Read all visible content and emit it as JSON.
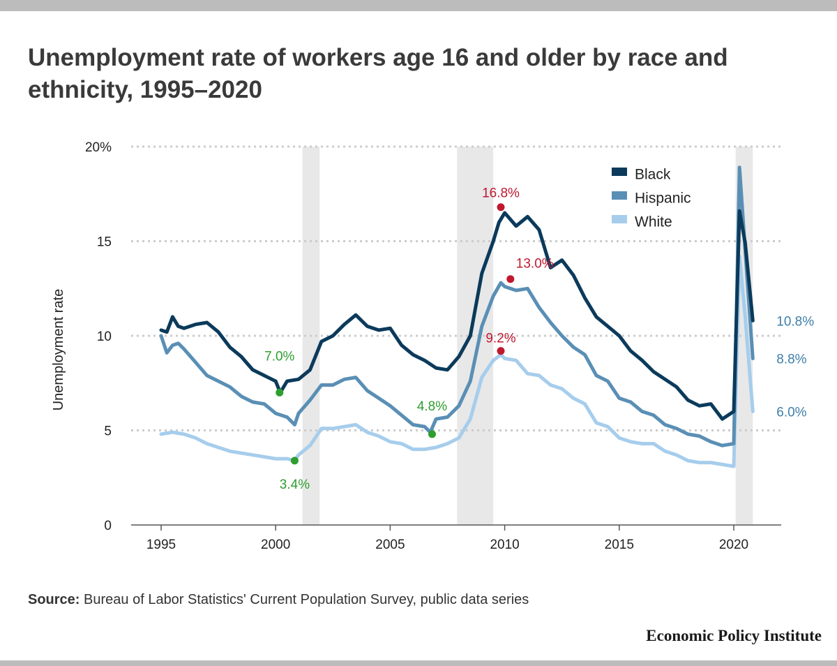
{
  "title": "Unemployment rate of workers age 16 and older by race and ethnicity, 1995–2020",
  "source_label": "Source:",
  "source_text": "Bureau of Labor Statistics' Current Population Survey, public data series",
  "brand": "Economic Policy Institute",
  "colors": {
    "Black": "#0b3a5b",
    "Hispanic": "#5a8fb5",
    "White": "#a6cdec",
    "max_marker": "#c0182f",
    "min_marker": "#2e9e2e",
    "end_label": "#3f7fa8",
    "recession": "#e8e8e8",
    "grid": "#cccccc"
  },
  "chart_data": {
    "type": "line",
    "xlabel": "",
    "ylabel": "Unemployment rate",
    "xlim": [
      1995,
      2020.83
    ],
    "ylim": [
      0,
      20
    ],
    "x_ticks": [
      1995,
      2000,
      2005,
      2010,
      2015,
      2020
    ],
    "y_ticks": [
      {
        "value": 0,
        "label": "0"
      },
      {
        "value": 5,
        "label": "5"
      },
      {
        "value": 10,
        "label": "10"
      },
      {
        "value": 15,
        "label": "15"
      },
      {
        "value": 20,
        "label": "20%"
      }
    ],
    "grid": "horizontal-dotted",
    "legend_position": "top-right",
    "recessions": [
      [
        2001.17,
        2001.92
      ],
      [
        2007.92,
        2009.5
      ],
      [
        2020.08,
        2020.83
      ]
    ],
    "series": [
      {
        "name": "Black",
        "points": [
          [
            1995,
            10.3
          ],
          [
            1995.25,
            10.2
          ],
          [
            1995.5,
            11.0
          ],
          [
            1995.75,
            10.5
          ],
          [
            1996,
            10.4
          ],
          [
            1996.5,
            10.6
          ],
          [
            1997,
            10.7
          ],
          [
            1997.5,
            10.2
          ],
          [
            1998,
            9.4
          ],
          [
            1998.5,
            8.9
          ],
          [
            1999,
            8.2
          ],
          [
            1999.5,
            7.9
          ],
          [
            2000,
            7.6
          ],
          [
            2000.2,
            7.0
          ],
          [
            2000.5,
            7.6
          ],
          [
            2001,
            7.7
          ],
          [
            2001.5,
            8.2
          ],
          [
            2002,
            9.7
          ],
          [
            2002.5,
            10.0
          ],
          [
            2003,
            10.6
          ],
          [
            2003.5,
            11.1
          ],
          [
            2004,
            10.5
          ],
          [
            2004.5,
            10.3
          ],
          [
            2005,
            10.4
          ],
          [
            2005.5,
            9.5
          ],
          [
            2006,
            9.0
          ],
          [
            2006.5,
            8.7
          ],
          [
            2007,
            8.3
          ],
          [
            2007.5,
            8.2
          ],
          [
            2008,
            8.9
          ],
          [
            2008.5,
            10.0
          ],
          [
            2009,
            13.3
          ],
          [
            2009.5,
            15.0
          ],
          [
            2009.75,
            16.0
          ],
          [
            2010,
            16.5
          ],
          [
            2010.5,
            15.8
          ],
          [
            2011,
            16.3
          ],
          [
            2011.5,
            15.6
          ],
          [
            2012,
            13.6
          ],
          [
            2012.5,
            14.0
          ],
          [
            2013,
            13.2
          ],
          [
            2013.5,
            12.0
          ],
          [
            2014,
            11.0
          ],
          [
            2014.5,
            10.5
          ],
          [
            2015,
            10.0
          ],
          [
            2015.5,
            9.2
          ],
          [
            2016,
            8.7
          ],
          [
            2016.5,
            8.1
          ],
          [
            2017,
            7.7
          ],
          [
            2017.5,
            7.3
          ],
          [
            2018,
            6.6
          ],
          [
            2018.5,
            6.3
          ],
          [
            2019,
            6.4
          ],
          [
            2019.5,
            5.6
          ],
          [
            2020,
            6.0
          ],
          [
            2020.25,
            16.6
          ],
          [
            2020.5,
            14.9
          ],
          [
            2020.83,
            10.8
          ]
        ]
      },
      {
        "name": "Hispanic",
        "points": [
          [
            1995,
            10.0
          ],
          [
            1995.25,
            9.1
          ],
          [
            1995.5,
            9.5
          ],
          [
            1995.75,
            9.6
          ],
          [
            1996,
            9.3
          ],
          [
            1996.5,
            8.6
          ],
          [
            1997,
            7.9
          ],
          [
            1997.5,
            7.6
          ],
          [
            1998,
            7.3
          ],
          [
            1998.5,
            6.8
          ],
          [
            1999,
            6.5
          ],
          [
            1999.5,
            6.4
          ],
          [
            2000,
            5.9
          ],
          [
            2000.5,
            5.7
          ],
          [
            2000.83,
            5.3
          ],
          [
            2001,
            5.9
          ],
          [
            2001.5,
            6.6
          ],
          [
            2002,
            7.4
          ],
          [
            2002.5,
            7.4
          ],
          [
            2003,
            7.7
          ],
          [
            2003.5,
            7.8
          ],
          [
            2004,
            7.1
          ],
          [
            2004.5,
            6.7
          ],
          [
            2005,
            6.3
          ],
          [
            2005.5,
            5.8
          ],
          [
            2006,
            5.3
          ],
          [
            2006.5,
            5.2
          ],
          [
            2006.75,
            4.9
          ],
          [
            2007,
            5.6
          ],
          [
            2007.5,
            5.7
          ],
          [
            2008,
            6.3
          ],
          [
            2008.5,
            7.6
          ],
          [
            2009,
            10.5
          ],
          [
            2009.5,
            12.1
          ],
          [
            2009.83,
            12.8
          ],
          [
            2010,
            12.6
          ],
          [
            2010.5,
            12.4
          ],
          [
            2011,
            12.5
          ],
          [
            2011.5,
            11.5
          ],
          [
            2012,
            10.7
          ],
          [
            2012.5,
            10.0
          ],
          [
            2013,
            9.4
          ],
          [
            2013.5,
            9.0
          ],
          [
            2014,
            7.9
          ],
          [
            2014.5,
            7.6
          ],
          [
            2015,
            6.7
          ],
          [
            2015.5,
            6.5
          ],
          [
            2016,
            6.0
          ],
          [
            2016.5,
            5.8
          ],
          [
            2017,
            5.3
          ],
          [
            2017.5,
            5.1
          ],
          [
            2018,
            4.8
          ],
          [
            2018.5,
            4.7
          ],
          [
            2019,
            4.4
          ],
          [
            2019.5,
            4.2
          ],
          [
            2020,
            4.3
          ],
          [
            2020.25,
            18.9
          ],
          [
            2020.5,
            14.5
          ],
          [
            2020.83,
            8.8
          ]
        ]
      },
      {
        "name": "White",
        "points": [
          [
            1995,
            4.8
          ],
          [
            1995.5,
            4.9
          ],
          [
            1996,
            4.8
          ],
          [
            1996.5,
            4.6
          ],
          [
            1997,
            4.3
          ],
          [
            1997.5,
            4.1
          ],
          [
            1998,
            3.9
          ],
          [
            1998.5,
            3.8
          ],
          [
            1999,
            3.7
          ],
          [
            1999.5,
            3.6
          ],
          [
            2000,
            3.5
          ],
          [
            2000.5,
            3.5
          ],
          [
            2000.83,
            3.4
          ],
          [
            2001,
            3.7
          ],
          [
            2001.5,
            4.2
          ],
          [
            2002,
            5.1
          ],
          [
            2002.5,
            5.1
          ],
          [
            2003,
            5.2
          ],
          [
            2003.5,
            5.3
          ],
          [
            2004,
            4.9
          ],
          [
            2004.5,
            4.7
          ],
          [
            2005,
            4.4
          ],
          [
            2005.5,
            4.3
          ],
          [
            2006,
            4.0
          ],
          [
            2006.5,
            4.0
          ],
          [
            2007,
            4.1
          ],
          [
            2007.5,
            4.3
          ],
          [
            2008,
            4.6
          ],
          [
            2008.5,
            5.6
          ],
          [
            2009,
            7.8
          ],
          [
            2009.5,
            8.7
          ],
          [
            2009.83,
            9.0
          ],
          [
            2010,
            8.8
          ],
          [
            2010.5,
            8.7
          ],
          [
            2011,
            8.0
          ],
          [
            2011.5,
            7.9
          ],
          [
            2012,
            7.4
          ],
          [
            2012.5,
            7.2
          ],
          [
            2013,
            6.7
          ],
          [
            2013.5,
            6.4
          ],
          [
            2014,
            5.4
          ],
          [
            2014.5,
            5.2
          ],
          [
            2015,
            4.6
          ],
          [
            2015.5,
            4.4
          ],
          [
            2016,
            4.3
          ],
          [
            2016.5,
            4.3
          ],
          [
            2017,
            3.9
          ],
          [
            2017.5,
            3.7
          ],
          [
            2018,
            3.4
          ],
          [
            2018.5,
            3.3
          ],
          [
            2019,
            3.3
          ],
          [
            2019.5,
            3.2
          ],
          [
            2020,
            3.1
          ],
          [
            2020.25,
            14.2
          ],
          [
            2020.5,
            11.0
          ],
          [
            2020.83,
            6.0
          ]
        ]
      }
    ],
    "annotations": [
      {
        "series": "Black",
        "x": 2009.83,
        "y": 16.8,
        "label": "16.8%",
        "kind": "max"
      },
      {
        "series": "Hispanic",
        "x": 2010.25,
        "y": 13.0,
        "label": "13.0%",
        "kind": "max"
      },
      {
        "series": "White",
        "x": 2009.83,
        "y": 9.2,
        "label": "9.2%",
        "kind": "max"
      },
      {
        "series": "Black",
        "x": 2000.17,
        "y": 7.0,
        "label": "7.0%",
        "kind": "min"
      },
      {
        "series": "Hispanic",
        "x": 2006.83,
        "y": 4.8,
        "label": "4.8%",
        "kind": "min"
      },
      {
        "series": "White",
        "x": 2000.83,
        "y": 3.4,
        "label": "3.4%",
        "kind": "min"
      }
    ],
    "end_labels": [
      {
        "series": "Black",
        "value": 10.8,
        "label": "10.8%"
      },
      {
        "series": "Hispanic",
        "value": 8.8,
        "label": "8.8%"
      },
      {
        "series": "White",
        "value": 6.0,
        "label": "6.0%"
      }
    ]
  }
}
